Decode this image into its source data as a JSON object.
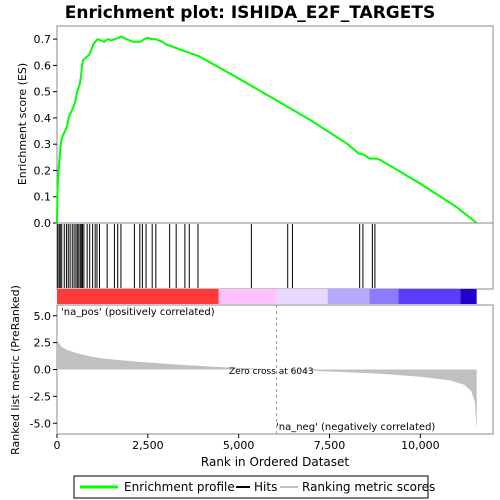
{
  "chart_data": {
    "type": "line",
    "title": "Enrichment plot: ISHIDA_E2F_TARGETS",
    "es_panel": {
      "ylabel": "Enrichment score (ES)",
      "ylim": [
        0.0,
        0.75
      ],
      "yticks": [
        "0.0",
        "0.1",
        "0.2",
        "0.3",
        "0.4",
        "0.5",
        "0.6",
        "0.7"
      ],
      "ytick_values": [
        0.0,
        0.1,
        0.2,
        0.3,
        0.4,
        0.5,
        0.6,
        0.7
      ],
      "line_color": "#00ff00",
      "curve": [
        [
          0,
          0.0
        ],
        [
          15,
          0.12
        ],
        [
          40,
          0.2
        ],
        [
          80,
          0.26
        ],
        [
          110,
          0.31
        ],
        [
          150,
          0.33
        ],
        [
          220,
          0.35
        ],
        [
          280,
          0.37
        ],
        [
          320,
          0.4
        ],
        [
          380,
          0.42
        ],
        [
          450,
          0.44
        ],
        [
          500,
          0.46
        ],
        [
          540,
          0.49
        ],
        [
          580,
          0.51
        ],
        [
          630,
          0.53
        ],
        [
          660,
          0.56
        ],
        [
          690,
          0.6
        ],
        [
          720,
          0.62
        ],
        [
          800,
          0.63
        ],
        [
          880,
          0.64
        ],
        [
          950,
          0.66
        ],
        [
          1000,
          0.68
        ],
        [
          1050,
          0.69
        ],
        [
          1120,
          0.7
        ],
        [
          1200,
          0.695
        ],
        [
          1300,
          0.69
        ],
        [
          1400,
          0.7
        ],
        [
          1500,
          0.695
        ],
        [
          1600,
          0.7
        ],
        [
          1700,
          0.705
        ],
        [
          1780,
          0.71
        ],
        [
          1900,
          0.7
        ],
        [
          2000,
          0.695
        ],
        [
          2100,
          0.69
        ],
        [
          2200,
          0.69
        ],
        [
          2300,
          0.69
        ],
        [
          2400,
          0.7
        ],
        [
          2500,
          0.705
        ],
        [
          2600,
          0.7
        ],
        [
          2700,
          0.7
        ],
        [
          2800,
          0.695
        ],
        [
          2900,
          0.69
        ],
        [
          3000,
          0.68
        ],
        [
          3100,
          0.675
        ],
        [
          3200,
          0.67
        ],
        [
          3300,
          0.665
        ],
        [
          3500,
          0.655
        ],
        [
          3700,
          0.645
        ],
        [
          3900,
          0.635
        ],
        [
          4100,
          0.62
        ],
        [
          5000,
          0.55
        ],
        [
          6000,
          0.47
        ],
        [
          7000,
          0.39
        ],
        [
          8000,
          0.3
        ],
        [
          8300,
          0.265
        ],
        [
          8450,
          0.26
        ],
        [
          8600,
          0.245
        ],
        [
          8800,
          0.245
        ],
        [
          8900,
          0.24
        ],
        [
          10000,
          0.15
        ],
        [
          11000,
          0.06
        ],
        [
          11550,
          0.0
        ]
      ]
    },
    "hits": {
      "color": "#000000",
      "positions": [
        20,
        60,
        90,
        130,
        200,
        260,
        310,
        360,
        420,
        470,
        520,
        560,
        600,
        640,
        670,
        700,
        740,
        830,
        900,
        980,
        1050,
        1100,
        1170,
        1380,
        1580,
        1670,
        1760,
        2130,
        2280,
        2350,
        2450,
        2620,
        2720,
        3100,
        3280,
        3520,
        3640,
        3880,
        5350,
        6350,
        6480,
        8330,
        8420,
        8680,
        8750
      ]
    },
    "rank_panel": {
      "ylabel": "Ranked list metric (PreRanked)",
      "xlabel": "Rank in Ordered Dataset",
      "ylim": [
        -6.0,
        6.0
      ],
      "yticks": [
        "5.0",
        "2.5",
        "0.0",
        "-2.5",
        "-5.0"
      ],
      "ytick_values": [
        5.0,
        2.5,
        0.0,
        -2.5,
        -5.0
      ],
      "xlim": [
        0,
        12000
      ],
      "xticks": [
        "0",
        "2,500",
        "5,000",
        "7,500",
        "10,000"
      ],
      "xtick_values": [
        0,
        2500,
        5000,
        7500,
        10000
      ],
      "fill_color": "#c0c0c0",
      "metric_curve": [
        [
          0,
          3.2
        ],
        [
          30,
          2.6
        ],
        [
          100,
          2.2
        ],
        [
          250,
          1.85
        ],
        [
          500,
          1.55
        ],
        [
          800,
          1.3
        ],
        [
          1200,
          1.05
        ],
        [
          1800,
          0.85
        ],
        [
          2500,
          0.65
        ],
        [
          3500,
          0.42
        ],
        [
          4500,
          0.22
        ],
        [
          5500,
          0.08
        ],
        [
          6043,
          0.0
        ],
        [
          7000,
          -0.12
        ],
        [
          8000,
          -0.25
        ],
        [
          9000,
          -0.42
        ],
        [
          10000,
          -0.68
        ],
        [
          10800,
          -1.0
        ],
        [
          11200,
          -1.4
        ],
        [
          11400,
          -2.0
        ],
        [
          11500,
          -3.0
        ],
        [
          11550,
          -5.6
        ]
      ],
      "zero_cross_label": "Zero cross at 6043",
      "zero_cross_rank": 6043,
      "pos_label": "'na_pos' (positively correlated)",
      "neg_label": "'na_neg' (negatively correlated)",
      "pos_color": "#ff0000",
      "neg_color": "#0000ff"
    },
    "heat_bar": {
      "segments": [
        {
          "from": 0,
          "to": 4450,
          "color": "#ff3a3a"
        },
        {
          "from": 4450,
          "to": 6043,
          "color": "#ffc0ff"
        },
        {
          "from": 6043,
          "to": 7450,
          "color": "#e8d8ff"
        },
        {
          "from": 7450,
          "to": 8600,
          "color": "#b8a8ff"
        },
        {
          "from": 8600,
          "to": 9400,
          "color": "#8c7aff"
        },
        {
          "from": 9400,
          "to": 11100,
          "color": "#5a3cff"
        },
        {
          "from": 11100,
          "to": 11550,
          "color": "#2200cc"
        }
      ]
    },
    "legend": {
      "entries": [
        {
          "label": "Enrichment profile",
          "color": "#00ff00"
        },
        {
          "label": "Hits",
          "color": "#000000"
        },
        {
          "label": "Ranking metric scores",
          "color": "#c0c0c0"
        }
      ]
    }
  }
}
